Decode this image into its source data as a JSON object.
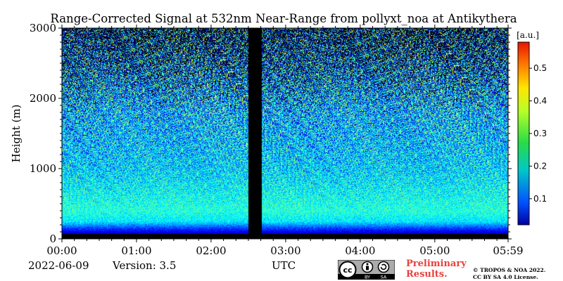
{
  "chart_data": {
    "type": "heatmap",
    "title": "Range-Corrected Signal at 532nm Near-Range from pollyxt_noa at Antikythera",
    "xlabel": "UTC",
    "ylabel": "Height (m)",
    "x_ticks": [
      "00:00",
      "01:00",
      "02:00",
      "03:00",
      "04:00",
      "05:00",
      "05:59"
    ],
    "x_range_hours": [
      0,
      5.983
    ],
    "y_ticks": [
      0,
      1000,
      2000,
      3000
    ],
    "ylim": [
      0,
      3000
    ],
    "colorbar": {
      "label": "[a.u.]",
      "ticks": [
        0.1,
        0.2,
        0.3,
        0.4,
        0.5
      ],
      "range": [
        0.02,
        0.58
      ],
      "colormap": "jet"
    },
    "data_gap_hours": [
      2.5,
      2.68
    ],
    "noise_floor_height_m": 80,
    "profile_signal": [
      {
        "height_m": 80,
        "value": 0.06
      },
      {
        "height_m": 150,
        "value": 0.12
      },
      {
        "height_m": 250,
        "value": 0.22
      },
      {
        "height_m": 400,
        "value": 0.25
      },
      {
        "height_m": 700,
        "value": 0.23
      },
      {
        "height_m": 1000,
        "value": 0.21
      },
      {
        "height_m": 1500,
        "value": 0.2
      },
      {
        "height_m": 2000,
        "value": 0.19
      },
      {
        "height_m": 2500,
        "value": 0.17
      },
      {
        "height_m": 3000,
        "value": 0.15
      }
    ],
    "date": "2022-06-09",
    "version": "Version: 3.5"
  },
  "footer": {
    "preliminary": "Preliminary Results.",
    "copyright_line1": "© TROPOS & NOA 2022.",
    "copyright_line2": "CC BY SA 4.0 License.",
    "license_badge": {
      "cc": "cc",
      "by": "BY",
      "sa": "SA"
    }
  },
  "colors": {
    "gap": "#000000",
    "prelim_text": "#e8403c"
  }
}
